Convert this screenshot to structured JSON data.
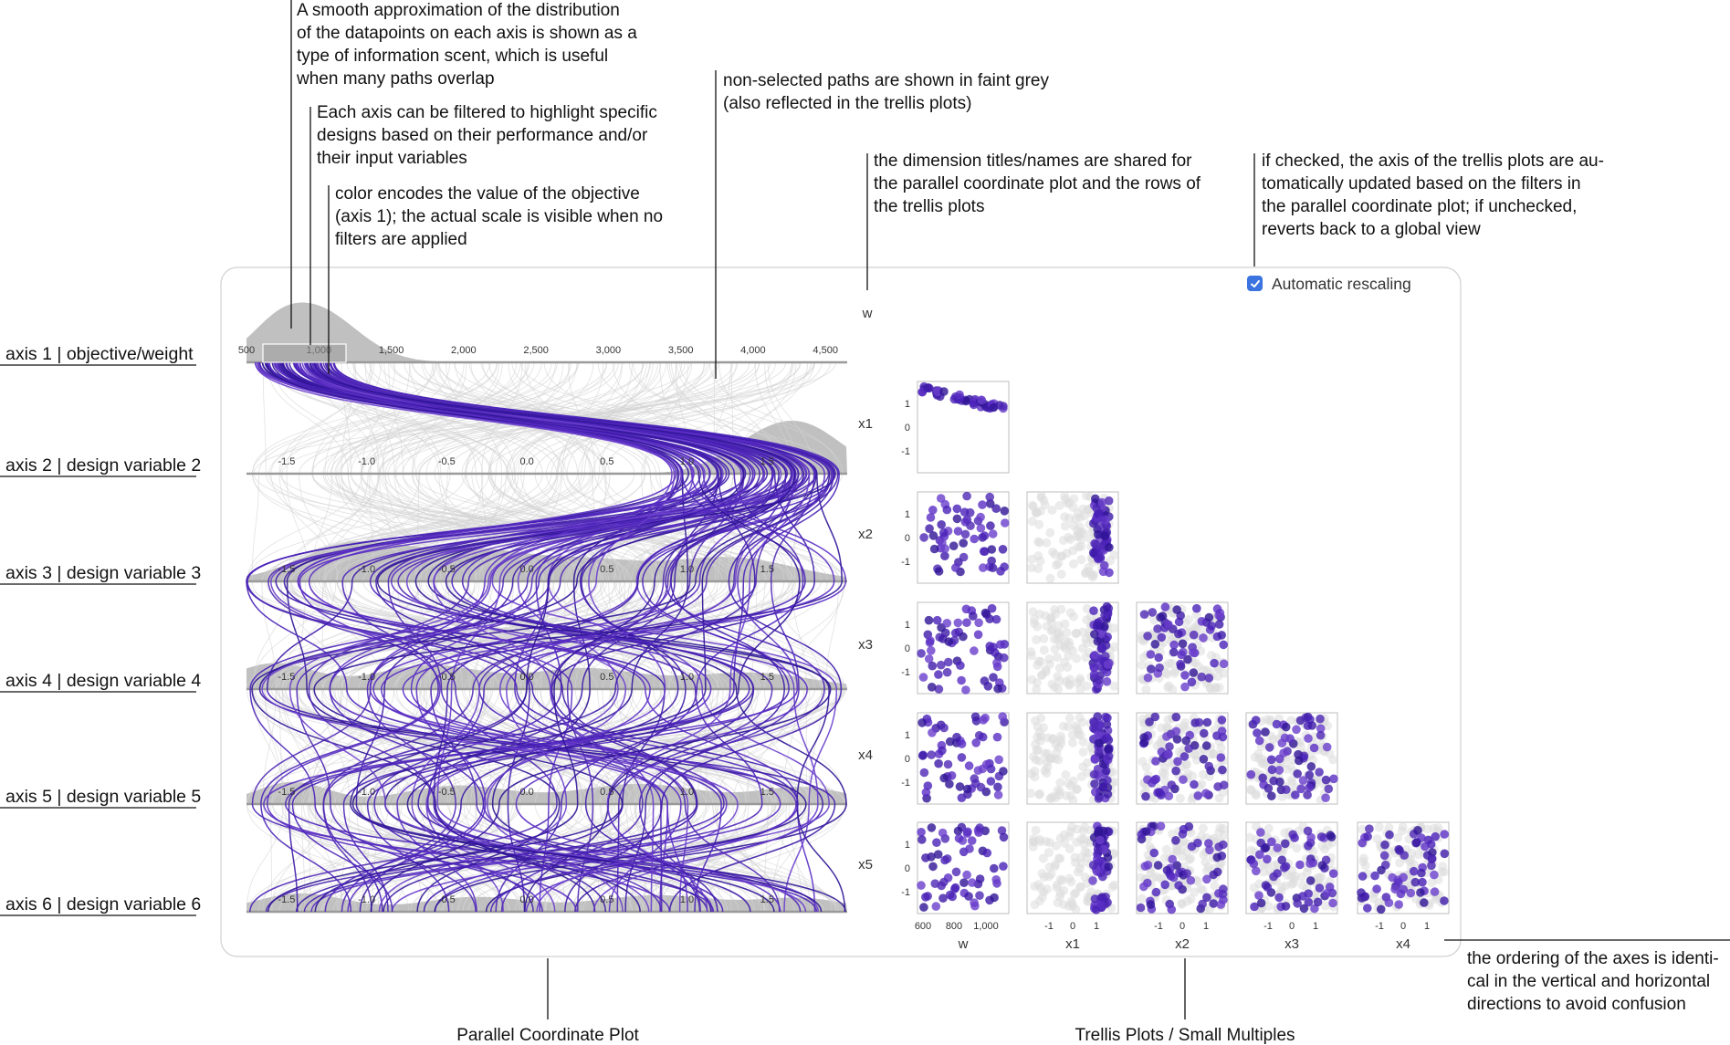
{
  "annotations": {
    "distribution": [
      "A smooth approximation of the distribution",
      "of the datapoints on each axis is shown as a",
      "type of information scent, which is useful",
      "when many paths overlap"
    ],
    "filter": [
      "Each axis can be filtered to highlight specific",
      "designs based on their performance and/or",
      "their input variables"
    ],
    "color": [
      "color encodes the value of the objective",
      "(axis 1); the actual scale is visible when no",
      "filters are applied"
    ],
    "nonselected": [
      "non-selected paths are shown in faint grey",
      "(also reflected in the trellis plots)"
    ],
    "titles": [
      "the dimension titles/names are shared for",
      "the parallel coordinate plot and the rows of",
      "the trellis plots"
    ],
    "rescale": [
      "if checked, the axis of the trellis plots are au-",
      "tomatically updated based on the filters in",
      "the parallel coordinate plot; if unchecked,",
      "reverts back to a global view"
    ],
    "ordering": [
      "the ordering of the axes is identi-",
      "cal in the vertical and horizontal",
      "directions to avoid confusion"
    ],
    "pcp_caption": "Parallel Coordinate Plot",
    "trellis_caption": "Trellis Plots / Small Multiples"
  },
  "axis_names": [
    "axis 1 | objective/weight",
    "axis 2 | design variable 2",
    "axis 3 | design variable  3",
    "axis 4 | design variable  4",
    "axis 5 | design variable  5",
    "axis 6 | design variable  6"
  ],
  "checkbox": {
    "label": "Automatic rescaling",
    "checked": true
  },
  "colors": {
    "selected": "#4a22b8",
    "faint": "#d4d4d4",
    "density": "#b9b9b9",
    "checkbox": "#3b74e0"
  },
  "pcp": {
    "axis1_ticks": [
      "500",
      "1,000",
      "1,500",
      "2,000",
      "2,500",
      "3,000",
      "3,500",
      "4,000",
      "4,500"
    ],
    "axis1_range": [
      500,
      4650
    ],
    "axis1_filter": [
      500,
      1150
    ],
    "var_ticks": [
      "-1.5",
      "-1.0",
      "-0.5",
      "0.0",
      "0.5",
      "1.0",
      "1.5"
    ],
    "var_range": [
      -1.75,
      2.0
    ]
  },
  "trellis": {
    "row_labels": [
      "x1",
      "x2",
      "x3",
      "x4",
      "x5"
    ],
    "col_labels": [
      "w",
      "x1",
      "x2",
      "x3",
      "x4"
    ],
    "top_label": "w",
    "y_ticks": [
      "1",
      "0",
      "-1"
    ],
    "x_ticks_w": [
      "600",
      "800",
      "1,000"
    ],
    "x_ticks_var": [
      "-1",
      "0",
      "1"
    ]
  }
}
